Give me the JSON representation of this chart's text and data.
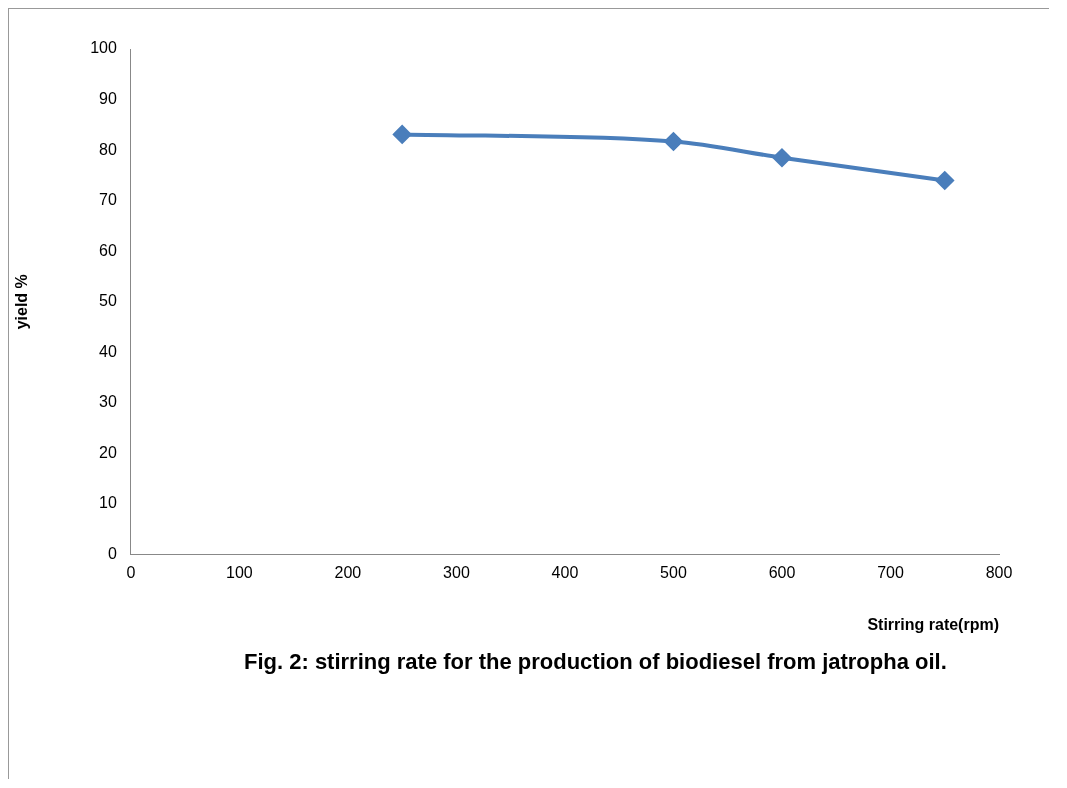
{
  "chart_data": {
    "type": "line",
    "xlabel": "Stirring rate(rpm)",
    "ylabel": "yield %",
    "x": [
      250,
      500,
      600,
      750
    ],
    "series": [
      {
        "color": "#4a7ebb",
        "values": [
          83.1,
          81.7,
          78.5,
          74.0
        ]
      }
    ],
    "xlim": [
      0,
      800
    ],
    "xticks": [
      0,
      100,
      200,
      300,
      400,
      500,
      600,
      700,
      800
    ],
    "ylim": [
      0,
      100
    ],
    "yticks": [
      0,
      10,
      20,
      30,
      40,
      50,
      60,
      70,
      80,
      90,
      100
    ],
    "grid": false,
    "legend": false,
    "marker": "diamond",
    "line_style": "solid",
    "annotations": [
      "Fig. 2: stirring rate for the production of biodiesel from jatropha oil."
    ]
  }
}
